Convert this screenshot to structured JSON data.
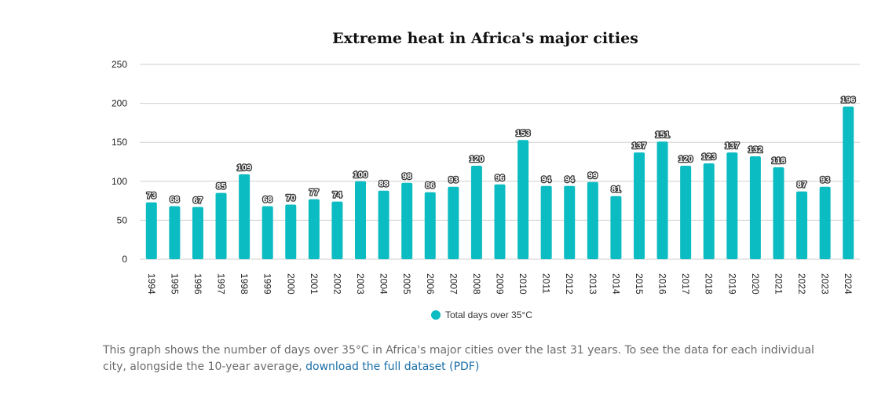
{
  "chart_data": {
    "type": "bar",
    "title": "Extreme heat in Africa's major cities",
    "xlabel": "",
    "ylabel": "",
    "ylim": [
      0,
      250
    ],
    "yticks": [
      0,
      50,
      100,
      150,
      200,
      250
    ],
    "grid": true,
    "legend_position": "bottom",
    "color": "#0bbcc2",
    "categories": [
      "1994",
      "1995",
      "1996",
      "1997",
      "1998",
      "1999",
      "2000",
      "2001",
      "2002",
      "2003",
      "2004",
      "2005",
      "2006",
      "2007",
      "2008",
      "2009",
      "2010",
      "2011",
      "2012",
      "2013",
      "2014",
      "2015",
      "2016",
      "2017",
      "2018",
      "2019",
      "2020",
      "2021",
      "2022",
      "2023",
      "2024"
    ],
    "series": [
      {
        "name": "Total days over 35°C",
        "values": [
          73,
          68,
          67,
          85,
          109,
          68,
          70,
          77,
          74,
          100,
          88,
          98,
          86,
          93,
          120,
          96,
          153,
          94,
          94,
          99,
          81,
          137,
          151,
          120,
          123,
          137,
          132,
          118,
          87,
          93,
          196
        ]
      }
    ]
  },
  "caption": {
    "text": "This graph shows the number of days over 35°C in Africa's major cities over the last 31 years. To see the data for each individual city, alongside the 10-year average, ",
    "link_text": "download the full dataset (PDF)"
  }
}
